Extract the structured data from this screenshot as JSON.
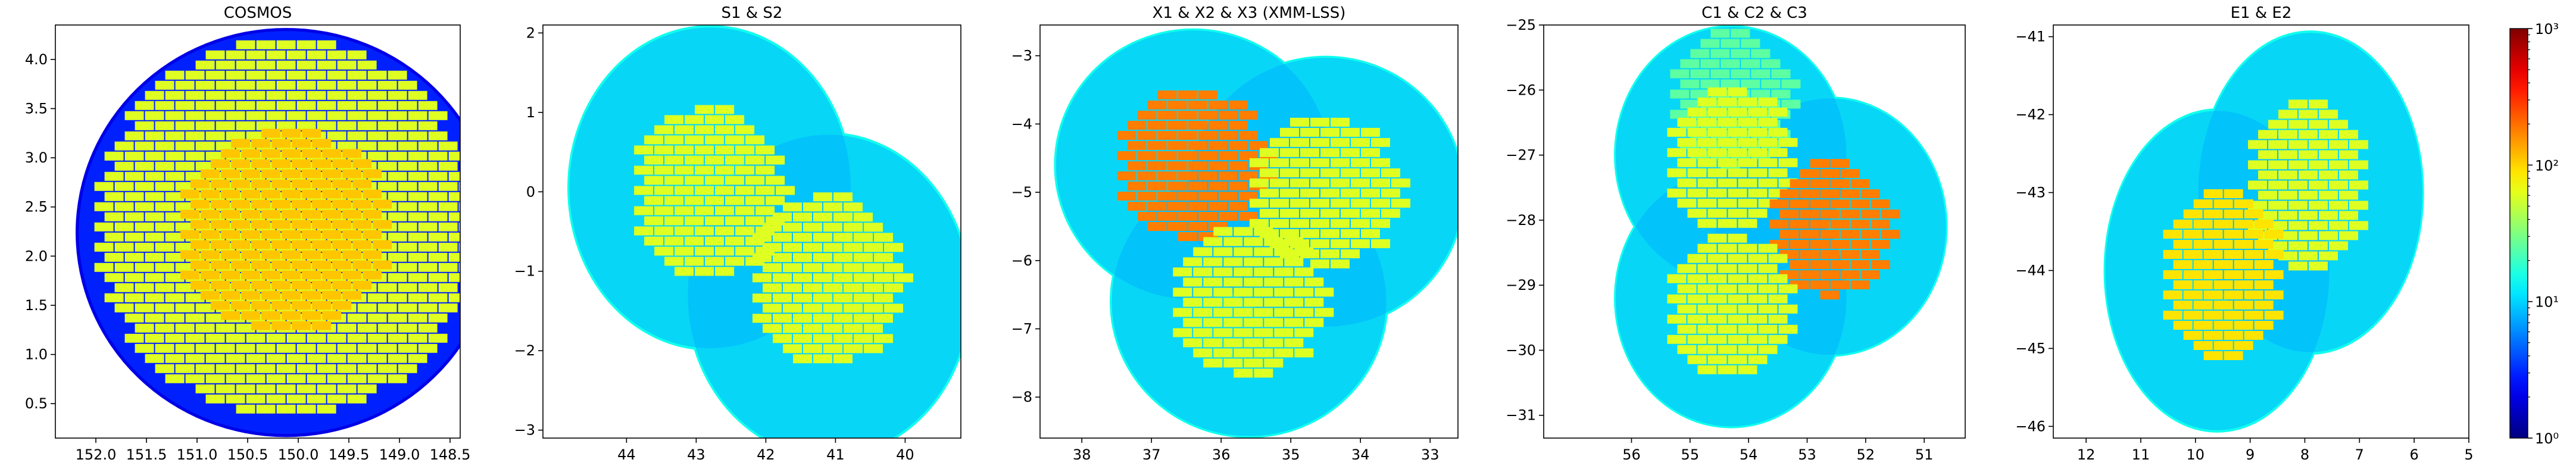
{
  "chart_data": [
    {
      "type": "heatmap",
      "title": "COSMOS",
      "xlabel": "",
      "ylabel": "",
      "xlim": [
        152.4,
        148.4
      ],
      "ylim": [
        0.15,
        4.35
      ],
      "xticks": [
        152.0,
        151.5,
        151.0,
        150.5,
        150.0,
        149.5,
        149.0,
        148.5
      ],
      "xtick_labels": [
        "152.0",
        "151.5",
        "151.0",
        "150.5",
        "150.0",
        "149.5",
        "149.0",
        "148.5"
      ],
      "yticks": [
        0.5,
        1.0,
        1.5,
        2.0,
        2.5,
        3.0,
        3.5,
        4.0
      ],
      "ytick_labels": [
        "0.5",
        "1.0",
        "1.5",
        "2.0",
        "2.5",
        "3.0",
        "3.5",
        "4.0"
      ],
      "background_level": 2,
      "circles": [
        {
          "cx": 150.12,
          "cy": 2.24,
          "r": 2.08,
          "level": 3
        }
      ],
      "tile_regions": [
        {
          "cx": 150.12,
          "cy": 2.3,
          "r": 1.9,
          "level": 60
        },
        {
          "cx": 150.12,
          "cy": 2.25,
          "r": 1.05,
          "level": 110
        }
      ]
    },
    {
      "type": "heatmap",
      "title": "S1 & S2",
      "xlabel": "",
      "ylabel": "",
      "xlim": [
        45.2,
        39.2
      ],
      "ylim": [
        -3.1,
        2.1
      ],
      "xticks": [
        44,
        43,
        42,
        41,
        40
      ],
      "xtick_labels": [
        "44",
        "43",
        "42",
        "41",
        "40"
      ],
      "yticks": [
        -3,
        -2,
        -1,
        0,
        1,
        2
      ],
      "ytick_labels": [
        "−3",
        "−2",
        "−1",
        "0",
        "1",
        "2"
      ],
      "background_level": 15,
      "circles": [
        {
          "cx": 42.8,
          "cy": 0.05,
          "r": 2.05,
          "level": 8
        },
        {
          "cx": 41.1,
          "cy": -1.3,
          "r": 2.05,
          "level": 8
        }
      ],
      "tile_regions": [
        {
          "cx": 42.8,
          "cy": 0.0,
          "r": 1.1,
          "level": 60
        },
        {
          "cx": 41.1,
          "cy": -1.1,
          "r": 1.1,
          "level": 60
        }
      ]
    },
    {
      "type": "heatmap",
      "title": "X1 & X2 & X3 (XMM-LSS)",
      "xlabel": "",
      "ylabel": "",
      "xlim": [
        38.6,
        32.6
      ],
      "ylim": [
        -8.6,
        -2.55
      ],
      "xticks": [
        38,
        37,
        36,
        35,
        34,
        33
      ],
      "xtick_labels": [
        "38",
        "37",
        "36",
        "35",
        "34",
        "33"
      ],
      "yticks": [
        -8,
        -7,
        -6,
        -5,
        -4,
        -3
      ],
      "ytick_labels": [
        "−8",
        "−7",
        "−6",
        "−5",
        "−4",
        "−3"
      ],
      "background_level": 15,
      "circles": [
        {
          "cx": 36.4,
          "cy": -4.6,
          "r": 2.0,
          "level": 8
        },
        {
          "cx": 34.5,
          "cy": -5.0,
          "r": 2.0,
          "level": 8
        },
        {
          "cx": 35.6,
          "cy": -6.6,
          "r": 2.0,
          "level": 8
        }
      ],
      "tile_regions": [
        {
          "cx": 36.4,
          "cy": -4.6,
          "r": 1.1,
          "level": 180
        },
        {
          "cx": 34.5,
          "cy": -5.0,
          "r": 1.1,
          "level": 60
        },
        {
          "cx": 35.6,
          "cy": -6.6,
          "r": 1.1,
          "level": 60
        }
      ]
    },
    {
      "type": "heatmap",
      "title": "C1 & C2 & C3",
      "xlabel": "",
      "ylabel": "",
      "xlim": [
        57.5,
        50.3
      ],
      "ylim": [
        -31.35,
        -25.0
      ],
      "xticks": [
        56,
        55,
        54,
        53,
        52,
        51
      ],
      "xtick_labels": [
        "56",
        "55",
        "54",
        "53",
        "52",
        "51"
      ],
      "yticks": [
        -31,
        -30,
        -29,
        -28,
        -27,
        -26,
        -25
      ],
      "ytick_labels": [
        "−31",
        "−30",
        "−29",
        "−28",
        "−27",
        "−26",
        "−25"
      ],
      "background_level": 15,
      "circles": [
        {
          "cx": 54.3,
          "cy": -27.0,
          "r": 2.0,
          "level": 8
        },
        {
          "cx": 52.6,
          "cy": -28.1,
          "r": 2.0,
          "level": 8
        },
        {
          "cx": 54.3,
          "cy": -29.2,
          "r": 2.0,
          "level": 8
        }
      ],
      "tile_regions": [
        {
          "cx": 54.3,
          "cy": -26.1,
          "r": 1.05,
          "level": 25
        },
        {
          "cx": 54.3,
          "cy": -27.05,
          "r": 1.1,
          "level": 60
        },
        {
          "cx": 52.6,
          "cy": -28.1,
          "r": 1.05,
          "level": 180
        },
        {
          "cx": 54.3,
          "cy": -29.3,
          "r": 1.1,
          "level": 60
        }
      ]
    },
    {
      "type": "heatmap",
      "title": "E1 & E2",
      "xlabel": "",
      "ylabel": "",
      "xlim": [
        12.6,
        5.0
      ],
      "ylim": [
        -46.15,
        -40.85
      ],
      "xticks": [
        12,
        11,
        10,
        9,
        8,
        7,
        6,
        5
      ],
      "xtick_labels": [
        "12",
        "11",
        "10",
        "9",
        "8",
        "7",
        "6",
        "5"
      ],
      "yticks": [
        -46,
        -45,
        -44,
        -43,
        -42,
        -41
      ],
      "ytick_labels": [
        "−46",
        "−45",
        "−44",
        "−43",
        "−42",
        "−41"
      ],
      "background_level": 15,
      "circles": [
        {
          "cx": 7.9,
          "cy": -43.0,
          "r": 2.08,
          "level": 8
        },
        {
          "cx": 9.6,
          "cy": -44.0,
          "r": 2.08,
          "level": 8
        }
      ],
      "tile_regions": [
        {
          "cx": 7.95,
          "cy": -42.9,
          "r": 1.1,
          "level": 60
        },
        {
          "cx": 9.5,
          "cy": -44.05,
          "r": 1.1,
          "level": 90
        }
      ]
    }
  ],
  "colorbar": {
    "colormap": "jet",
    "scale": "log",
    "min": 1,
    "max": 1000,
    "ticks": [
      1,
      10,
      100,
      1000
    ],
    "tick_labels": [
      "10⁰",
      "10¹",
      "10²",
      "10³"
    ]
  }
}
